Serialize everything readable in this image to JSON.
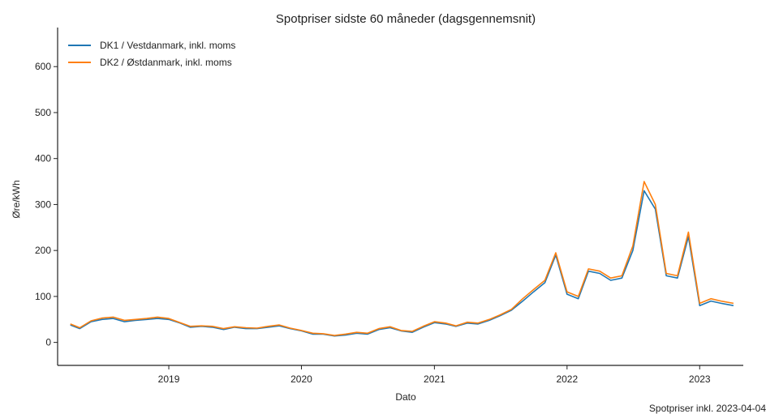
{
  "chart_data": {
    "type": "line",
    "title": "Spotpriser sidste 60 måneder (dagsgennemsnit)",
    "xlabel": "Dato",
    "ylabel": "Øre/kWh",
    "xlim": [
      "2018-03-01",
      "2023-05-01"
    ],
    "ylim": [
      -50,
      685
    ],
    "x_ticks": [
      "2019",
      "2020",
      "2021",
      "2022",
      "2023"
    ],
    "y_ticks": [
      0,
      100,
      200,
      300,
      400,
      500,
      600
    ],
    "grid": false,
    "legend_position": "top-left",
    "footer": "Spotpriser inkl. 2023-04-04",
    "series": [
      {
        "name": "DK1 / Vestdanmark, inkl. moms",
        "color": "#1f77b4",
        "points": [
          [
            "2018-04-05",
            38
          ],
          [
            "2018-05-01",
            30
          ],
          [
            "2018-06-01",
            45
          ],
          [
            "2018-07-01",
            50
          ],
          [
            "2018-08-01",
            52
          ],
          [
            "2018-09-01",
            45
          ],
          [
            "2018-10-01",
            48
          ],
          [
            "2018-11-01",
            50
          ],
          [
            "2018-12-01",
            52
          ],
          [
            "2019-01-01",
            50
          ],
          [
            "2019-02-01",
            42
          ],
          [
            "2019-03-01",
            33
          ],
          [
            "2019-04-01",
            35
          ],
          [
            "2019-05-01",
            33
          ],
          [
            "2019-06-01",
            28
          ],
          [
            "2019-07-01",
            33
          ],
          [
            "2019-08-01",
            30
          ],
          [
            "2019-09-01",
            30
          ],
          [
            "2019-10-01",
            33
          ],
          [
            "2019-11-01",
            36
          ],
          [
            "2019-12-01",
            30
          ],
          [
            "2020-01-01",
            25
          ],
          [
            "2020-02-01",
            18
          ],
          [
            "2020-03-01",
            18
          ],
          [
            "2020-04-01",
            14
          ],
          [
            "2020-05-01",
            16
          ],
          [
            "2020-06-01",
            20
          ],
          [
            "2020-07-01",
            18
          ],
          [
            "2020-08-01",
            28
          ],
          [
            "2020-09-01",
            32
          ],
          [
            "2020-10-01",
            25
          ],
          [
            "2020-11-01",
            22
          ],
          [
            "2020-12-01",
            33
          ],
          [
            "2021-01-01",
            43
          ],
          [
            "2021-02-01",
            40
          ],
          [
            "2021-03-01",
            35
          ],
          [
            "2021-04-01",
            42
          ],
          [
            "2021-05-01",
            40
          ],
          [
            "2021-06-01",
            48
          ],
          [
            "2021-07-01",
            58
          ],
          [
            "2021-08-01",
            70
          ],
          [
            "2021-09-01",
            90
          ],
          [
            "2021-10-01",
            110
          ],
          [
            "2021-11-01",
            130
          ],
          [
            "2021-12-01",
            190
          ],
          [
            "2022-01-01",
            105
          ],
          [
            "2022-02-01",
            95
          ],
          [
            "2022-03-01",
            155
          ],
          [
            "2022-04-01",
            150
          ],
          [
            "2022-05-01",
            135
          ],
          [
            "2022-06-01",
            140
          ],
          [
            "2022-07-01",
            200
          ],
          [
            "2022-08-01",
            330
          ],
          [
            "2022-09-01",
            290
          ],
          [
            "2022-10-01",
            145
          ],
          [
            "2022-11-01",
            140
          ],
          [
            "2022-12-01",
            230
          ],
          [
            "2023-01-01",
            80
          ],
          [
            "2023-02-01",
            90
          ],
          [
            "2023-03-01",
            85
          ],
          [
            "2023-04-04",
            80
          ]
        ]
      },
      {
        "name": "DK2 / Østdanmark, inkl. moms",
        "color": "#ff7f0e",
        "points": [
          [
            "2018-04-05",
            40
          ],
          [
            "2018-05-01",
            32
          ],
          [
            "2018-06-01",
            47
          ],
          [
            "2018-07-01",
            53
          ],
          [
            "2018-08-01",
            55
          ],
          [
            "2018-09-01",
            48
          ],
          [
            "2018-10-01",
            50
          ],
          [
            "2018-11-01",
            52
          ],
          [
            "2018-12-01",
            55
          ],
          [
            "2019-01-01",
            52
          ],
          [
            "2019-02-01",
            43
          ],
          [
            "2019-03-01",
            35
          ],
          [
            "2019-04-01",
            36
          ],
          [
            "2019-05-01",
            35
          ],
          [
            "2019-06-01",
            30
          ],
          [
            "2019-07-01",
            34
          ],
          [
            "2019-08-01",
            32
          ],
          [
            "2019-09-01",
            31
          ],
          [
            "2019-10-01",
            35
          ],
          [
            "2019-11-01",
            38
          ],
          [
            "2019-12-01",
            31
          ],
          [
            "2020-01-01",
            26
          ],
          [
            "2020-02-01",
            20
          ],
          [
            "2020-03-01",
            19
          ],
          [
            "2020-04-01",
            15
          ],
          [
            "2020-05-01",
            18
          ],
          [
            "2020-06-01",
            22
          ],
          [
            "2020-07-01",
            20
          ],
          [
            "2020-08-01",
            30
          ],
          [
            "2020-09-01",
            34
          ],
          [
            "2020-10-01",
            26
          ],
          [
            "2020-11-01",
            24
          ],
          [
            "2020-12-01",
            35
          ],
          [
            "2021-01-01",
            45
          ],
          [
            "2021-02-01",
            42
          ],
          [
            "2021-03-01",
            36
          ],
          [
            "2021-04-01",
            44
          ],
          [
            "2021-05-01",
            42
          ],
          [
            "2021-06-01",
            50
          ],
          [
            "2021-07-01",
            60
          ],
          [
            "2021-08-01",
            72
          ],
          [
            "2021-09-01",
            95
          ],
          [
            "2021-10-01",
            115
          ],
          [
            "2021-11-01",
            135
          ],
          [
            "2021-12-01",
            195
          ],
          [
            "2022-01-01",
            110
          ],
          [
            "2022-02-01",
            100
          ],
          [
            "2022-03-01",
            160
          ],
          [
            "2022-04-01",
            155
          ],
          [
            "2022-05-01",
            140
          ],
          [
            "2022-06-01",
            145
          ],
          [
            "2022-07-01",
            210
          ],
          [
            "2022-08-01",
            350
          ],
          [
            "2022-09-01",
            300
          ],
          [
            "2022-10-01",
            150
          ],
          [
            "2022-11-01",
            145
          ],
          [
            "2022-12-01",
            240
          ],
          [
            "2023-01-01",
            85
          ],
          [
            "2023-02-01",
            95
          ],
          [
            "2023-03-01",
            90
          ],
          [
            "2023-04-04",
            85
          ]
        ]
      }
    ]
  }
}
